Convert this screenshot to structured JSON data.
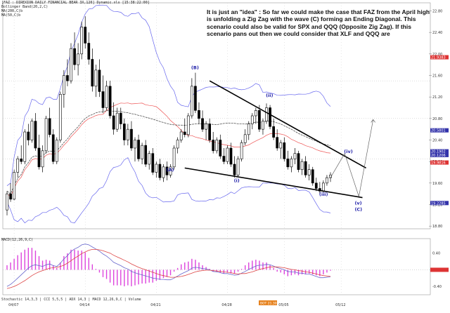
{
  "header": {
    "title_line": "[FAZ : DIREXION DAILY FINANCIAL BEAR 3X,120] Dynamic.xls [15:38:22:00]",
    "bbands_line": "Bollinger Band(20,2,C)",
    "ma_line1": "MA(200,C)b",
    "ma_line2": "MA(50,C)b"
  },
  "annotation": "It is just an \"idea\" : So far we could make the case that FAZ from the April high is unfolding a Zig Zag with the wave (C) forming an Ending Diagonal. This scenario could also be valid for SPX and QQQ (Opposite Zig Zag). If this scenario pans out then we could consider that XLF and QQQ are",
  "macd_label": "MACD(12,26,9,C)",
  "bottom_tabs": "Stochastic 14,3,3 | CCI 5,5,5 | ADX 14,3 | MACD 12,26,9,C | Volume",
  "bottom_box": "BOT 21.30",
  "colors": {
    "up": "#ffffff",
    "down": "#000000",
    "bollinger": "#6666ee",
    "ma_red": "#ee5555",
    "ma_dark": "#555555",
    "macd_line": "#6666cc",
    "signal_line": "#dd4444",
    "histogram": "#dd44dd",
    "wave_label": "#2222aa",
    "trendline": "#000000",
    "price_box": "#dd3333",
    "price_box_alt": "#3333aa"
  },
  "chart_data": {
    "type": "candlestick",
    "x_ticks": [
      "04/07",
      "04/14",
      "04/21",
      "04/28",
      "05/05",
      "05/12"
    ],
    "y_ticks": [
      "22.80",
      "22.40",
      "22.00",
      "21.60",
      "21.20",
      "20.80",
      "20.40",
      "20.00",
      "19.60",
      "19.20",
      "18.80"
    ],
    "y_range": [
      18.75,
      22.95
    ],
    "price_boxes": [
      {
        "value": "21.9383",
        "color": "red"
      },
      {
        "value": "20.5801",
        "color": "blue"
      },
      {
        "value": "20.1902",
        "color": "blue"
      },
      {
        "value": "20.1206",
        "color": "blue"
      },
      {
        "value": "19.9816",
        "color": "red"
      },
      {
        "value": "19.2285",
        "color": "blue"
      }
    ],
    "wave_labels": [
      {
        "text": "(B)",
        "date_index": 53,
        "price": 21.72
      },
      {
        "text": "(A)",
        "date_index": 46,
        "price": 19.82
      },
      {
        "text": "(i)",
        "date_index": 65,
        "price": 19.62
      },
      {
        "text": "(ii)",
        "date_index": 74,
        "price": 21.2
      },
      {
        "text": "(iii)",
        "date_index": 89,
        "price": 19.36
      },
      {
        "text": "(iv)",
        "date_index": 96,
        "price": 20.16
      },
      {
        "text": "(v)",
        "date_index": 99,
        "price": 19.2
      },
      {
        "text": "(C)",
        "date_index": 99,
        "price": 19.08
      }
    ],
    "candles": [
      [
        19.1,
        19.45,
        19.0,
        19.4
      ],
      [
        19.4,
        19.6,
        19.25,
        19.3
      ],
      [
        19.3,
        19.85,
        19.28,
        19.8
      ],
      [
        19.8,
        20.1,
        19.7,
        20.05
      ],
      [
        20.05,
        20.3,
        19.95,
        20.0
      ],
      [
        20.0,
        20.6,
        19.95,
        20.55
      ],
      [
        20.55,
        20.7,
        20.3,
        20.4
      ],
      [
        20.4,
        20.8,
        20.35,
        20.75
      ],
      [
        20.75,
        20.9,
        20.2,
        20.25
      ],
      [
        20.25,
        20.5,
        19.85,
        19.9
      ],
      [
        19.9,
        20.3,
        19.8,
        20.2
      ],
      [
        20.2,
        20.85,
        20.15,
        20.8
      ],
      [
        20.8,
        21.0,
        20.45,
        20.5
      ],
      [
        20.5,
        20.6,
        19.95,
        20.0
      ],
      [
        20.0,
        20.45,
        19.95,
        20.4
      ],
      [
        20.4,
        21.3,
        20.35,
        21.25
      ],
      [
        21.25,
        21.7,
        21.0,
        21.6
      ],
      [
        21.6,
        21.9,
        21.4,
        21.5
      ],
      [
        21.5,
        22.2,
        21.45,
        22.1
      ],
      [
        22.1,
        22.4,
        21.7,
        21.8
      ],
      [
        21.8,
        22.2,
        21.6,
        22.0
      ],
      [
        22.0,
        22.6,
        21.9,
        22.5
      ],
      [
        22.5,
        22.7,
        22.1,
        22.2
      ],
      [
        22.2,
        22.4,
        21.8,
        21.9
      ],
      [
        21.9,
        22.1,
        21.3,
        21.4
      ],
      [
        21.4,
        21.8,
        21.2,
        21.7
      ],
      [
        21.7,
        21.9,
        21.2,
        21.3
      ],
      [
        21.3,
        21.6,
        20.9,
        21.0
      ],
      [
        21.0,
        21.5,
        20.95,
        21.4
      ],
      [
        21.4,
        21.5,
        20.8,
        20.85
      ],
      [
        20.85,
        21.1,
        20.5,
        20.6
      ],
      [
        20.6,
        21.0,
        20.55,
        20.9
      ],
      [
        20.9,
        21.0,
        20.6,
        20.7
      ],
      [
        20.7,
        20.8,
        20.3,
        20.4
      ],
      [
        20.4,
        20.7,
        20.3,
        20.6
      ],
      [
        20.6,
        20.75,
        20.2,
        20.25
      ],
      [
        20.25,
        20.45,
        20.0,
        20.4
      ],
      [
        20.4,
        20.5,
        20.0,
        20.05
      ],
      [
        20.05,
        20.35,
        19.95,
        20.3
      ],
      [
        20.3,
        20.4,
        19.9,
        19.95
      ],
      [
        19.95,
        20.2,
        19.85,
        20.15
      ],
      [
        20.15,
        20.25,
        19.75,
        19.8
      ],
      [
        19.8,
        20.0,
        19.7,
        19.95
      ],
      [
        19.95,
        20.05,
        19.65,
        19.7
      ],
      [
        19.7,
        19.95,
        19.62,
        19.9
      ],
      [
        19.9,
        20.0,
        19.65,
        19.75
      ],
      [
        19.75,
        19.95,
        19.7,
        19.9
      ],
      [
        19.9,
        20.3,
        19.85,
        20.25
      ],
      [
        20.25,
        20.45,
        20.15,
        20.4
      ],
      [
        20.4,
        20.6,
        20.35,
        20.55
      ],
      [
        20.55,
        20.8,
        20.45,
        20.5
      ],
      [
        20.5,
        20.9,
        20.45,
        20.85
      ],
      [
        20.85,
        21.55,
        20.8,
        21.4
      ],
      [
        21.4,
        21.65,
        20.9,
        20.95
      ],
      [
        20.95,
        21.1,
        20.7,
        20.8
      ],
      [
        20.8,
        20.95,
        20.55,
        20.6
      ],
      [
        20.6,
        20.75,
        20.4,
        20.7
      ],
      [
        20.7,
        20.8,
        20.35,
        20.4
      ],
      [
        20.4,
        20.55,
        20.15,
        20.2
      ],
      [
        20.2,
        20.45,
        20.15,
        20.4
      ],
      [
        20.4,
        20.5,
        20.05,
        20.1
      ],
      [
        20.1,
        20.25,
        19.95,
        20.0
      ],
      [
        20.0,
        20.3,
        19.95,
        20.25
      ],
      [
        20.25,
        20.35,
        19.9,
        19.95
      ],
      [
        19.95,
        20.1,
        19.7,
        19.75
      ],
      [
        19.75,
        20.1,
        19.72,
        20.05
      ],
      [
        20.05,
        20.4,
        20.0,
        20.35
      ],
      [
        20.35,
        20.6,
        20.3,
        20.5
      ],
      [
        20.5,
        20.75,
        20.4,
        20.7
      ],
      [
        20.7,
        20.9,
        20.6,
        20.85
      ],
      [
        20.85,
        21.0,
        20.7,
        20.95
      ],
      [
        20.95,
        21.05,
        20.55,
        20.6
      ],
      [
        20.6,
        20.8,
        20.5,
        20.75
      ],
      [
        20.75,
        21.08,
        20.7,
        21.0
      ],
      [
        21.0,
        21.05,
        20.6,
        20.65
      ],
      [
        20.65,
        20.8,
        20.4,
        20.45
      ],
      [
        20.45,
        20.6,
        20.2,
        20.25
      ],
      [
        20.25,
        20.4,
        20.05,
        20.35
      ],
      [
        20.35,
        20.45,
        20.0,
        20.05
      ],
      [
        20.05,
        20.2,
        19.85,
        19.9
      ],
      [
        19.9,
        20.1,
        19.8,
        20.05
      ],
      [
        20.05,
        20.25,
        19.95,
        20.15
      ],
      [
        20.15,
        20.2,
        19.8,
        19.85
      ],
      [
        19.85,
        20.05,
        19.75,
        20.0
      ],
      [
        20.0,
        20.1,
        19.7,
        19.75
      ],
      [
        19.75,
        19.95,
        19.65,
        19.85
      ],
      [
        19.85,
        19.9,
        19.55,
        19.6
      ],
      [
        19.6,
        19.7,
        19.45,
        19.5
      ],
      [
        19.5,
        19.62,
        19.38,
        19.45
      ],
      [
        19.45,
        19.65,
        19.42,
        19.6
      ],
      [
        19.6,
        19.75,
        19.55,
        19.7
      ],
      [
        19.7,
        19.8,
        19.62,
        19.75
      ]
    ],
    "macd": [
      -0.4,
      -0.35,
      -0.28,
      -0.2,
      -0.12,
      -0.04,
      0.04,
      0.1,
      0.12,
      0.1,
      0.08,
      0.12,
      0.14,
      0.1,
      0.08,
      0.16,
      0.26,
      0.34,
      0.44,
      0.5,
      0.54,
      0.6,
      0.62,
      0.6,
      0.55,
      0.5,
      0.45,
      0.38,
      0.33,
      0.26,
      0.18,
      0.14,
      0.1,
      0.05,
      0.02,
      -0.04,
      -0.07,
      -0.1,
      -0.12,
      -0.15,
      -0.17,
      -0.2,
      -0.21,
      -0.23,
      -0.23,
      -0.24,
      -0.24,
      -0.2,
      -0.15,
      -0.1,
      -0.06,
      -0.02,
      0.04,
      0.06,
      0.05,
      0.03,
      0.02,
      0.0,
      -0.04,
      -0.05,
      -0.07,
      -0.09,
      -0.09,
      -0.11,
      -0.13,
      -0.12,
      -0.08,
      -0.04,
      0.01,
      0.05,
      0.09,
      0.11,
      0.11,
      0.13,
      0.12,
      0.09,
      0.05,
      0.03,
      0.0,
      -0.04,
      -0.05,
      -0.05,
      -0.08,
      -0.08,
      -0.1,
      -0.1,
      -0.13,
      -0.16,
      -0.19,
      -0.19,
      -0.18,
      -0.17
    ],
    "signal": [
      -0.45,
      -0.43,
      -0.4,
      -0.36,
      -0.31,
      -0.26,
      -0.2,
      -0.14,
      -0.09,
      -0.05,
      -0.02,
      0.01,
      0.04,
      0.05,
      0.06,
      0.08,
      0.11,
      0.16,
      0.22,
      0.28,
      0.33,
      0.39,
      0.43,
      0.47,
      0.49,
      0.49,
      0.48,
      0.46,
      0.43,
      0.4,
      0.35,
      0.31,
      0.27,
      0.23,
      0.19,
      0.14,
      0.1,
      0.06,
      0.03,
      0.0,
      -0.03,
      -0.06,
      -0.09,
      -0.12,
      -0.14,
      -0.16,
      -0.18,
      -0.18,
      -0.17,
      -0.16,
      -0.14,
      -0.11,
      -0.08,
      -0.05,
      -0.03,
      -0.02,
      -0.01,
      -0.01,
      -0.02,
      -0.03,
      -0.04,
      -0.05,
      -0.06,
      -0.07,
      -0.09,
      -0.1,
      -0.09,
      -0.09,
      -0.07,
      -0.05,
      -0.02,
      0.01,
      0.03,
      0.05,
      0.07,
      0.07,
      0.07,
      0.06,
      0.05,
      0.03,
      0.01,
      0.0,
      -0.02,
      -0.03,
      -0.05,
      -0.06,
      -0.08,
      -0.1,
      -0.12,
      -0.14,
      -0.15,
      -0.16
    ],
    "macd_ylim": [
      -0.6,
      0.75
    ]
  }
}
